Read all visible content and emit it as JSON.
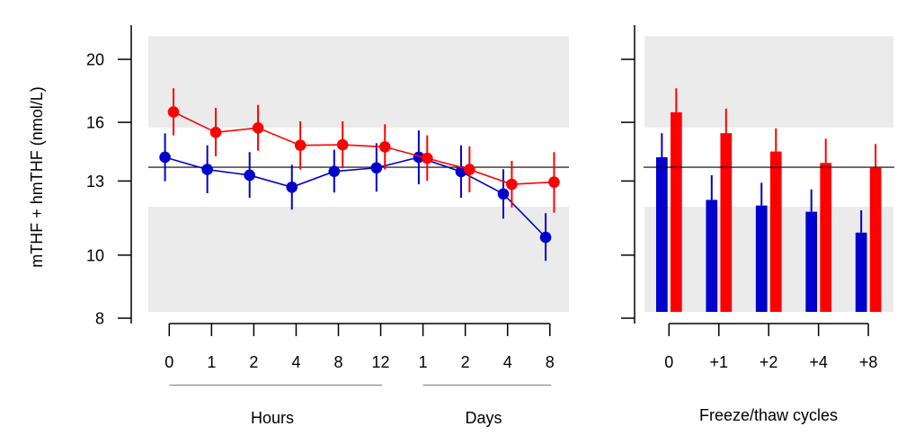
{
  "chart_data": [
    {
      "type": "line",
      "panel": "left",
      "title": "",
      "ylabel": "mTHF + hmTHF (nmol/L)",
      "yscale": "log",
      "ylim": [
        8,
        21.7
      ],
      "yticks": [
        8,
        10,
        13,
        16,
        20
      ],
      "ytick_labels": [
        "8",
        "10",
        "13",
        "16",
        "20"
      ],
      "categories": [
        "0",
        "1",
        "2",
        "4",
        "8",
        "12",
        "1",
        "2",
        "4",
        "8"
      ],
      "category_groups": [
        {
          "label": "Hours",
          "from": 0,
          "to": 5
        },
        {
          "label": "Days",
          "from": 6,
          "to": 9
        }
      ],
      "reference_line": 13.65,
      "reference_bands": [
        {
          "from": 15.7,
          "to": 21.7
        },
        {
          "from": 8.18,
          "to": 11.87
        }
      ],
      "series": [
        {
          "name": "blue",
          "color": "#0000cc",
          "values": [
            14.14,
            13.54,
            13.27,
            12.72,
            13.45,
            13.62,
            14.14,
            13.44,
            12.42,
            10.65
          ],
          "err_high": [
            15.39,
            14.75,
            14.4,
            13.77,
            14.52,
            14.86,
            15.55,
            14.75,
            13.55,
            11.6
          ],
          "err_low": [
            12.99,
            12.45,
            12.25,
            11.75,
            12.48,
            12.52,
            12.85,
            12.25,
            11.38,
            9.8
          ]
        },
        {
          "name": "red",
          "color": "#ff0000",
          "values": [
            16.6,
            15.44,
            15.69,
            14.75,
            14.78,
            14.67,
            14.09,
            13.54,
            12.85,
            12.95
          ],
          "err_high": [
            18.05,
            16.84,
            17.02,
            16.06,
            16.06,
            15.89,
            15.28,
            14.7,
            13.96,
            14.4
          ],
          "err_low": [
            15.28,
            14.19,
            14.47,
            13.54,
            13.6,
            13.54,
            13.01,
            12.49,
            11.84,
            11.62
          ]
        }
      ]
    },
    {
      "type": "bar",
      "panel": "right",
      "xlabel": "Freeze/thaw cycles",
      "yscale": "log",
      "ylim": [
        8,
        21.7
      ],
      "yticks": [
        8,
        10,
        13,
        16,
        20
      ],
      "categories": [
        "0",
        "+1",
        "+2",
        "+4",
        "+8"
      ],
      "reference_line": 13.65,
      "reference_bands": [
        {
          "from": 15.7,
          "to": 21.7
        },
        {
          "from": 8.18,
          "to": 11.87
        }
      ],
      "bar_base": 8.18,
      "series": [
        {
          "name": "blue",
          "color": "#0000cc",
          "values": [
            14.14,
            12.16,
            11.92,
            11.66,
            10.83
          ],
          "err_high": [
            15.4,
            13.27,
            12.92,
            12.62,
            11.72
          ]
        },
        {
          "name": "red",
          "color": "#ff0000",
          "values": [
            16.58,
            15.4,
            14.43,
            13.86,
            13.62
          ],
          "err_high": [
            18.05,
            16.8,
            15.66,
            15.1,
            14.82
          ]
        }
      ]
    }
  ],
  "labels": {
    "ylabel": "mTHF + hmTHF (nmol/L)",
    "hours": "Hours",
    "days": "Days",
    "freeze_thaw": "Freeze/thaw cycles"
  },
  "band_color": "#ebebeb"
}
